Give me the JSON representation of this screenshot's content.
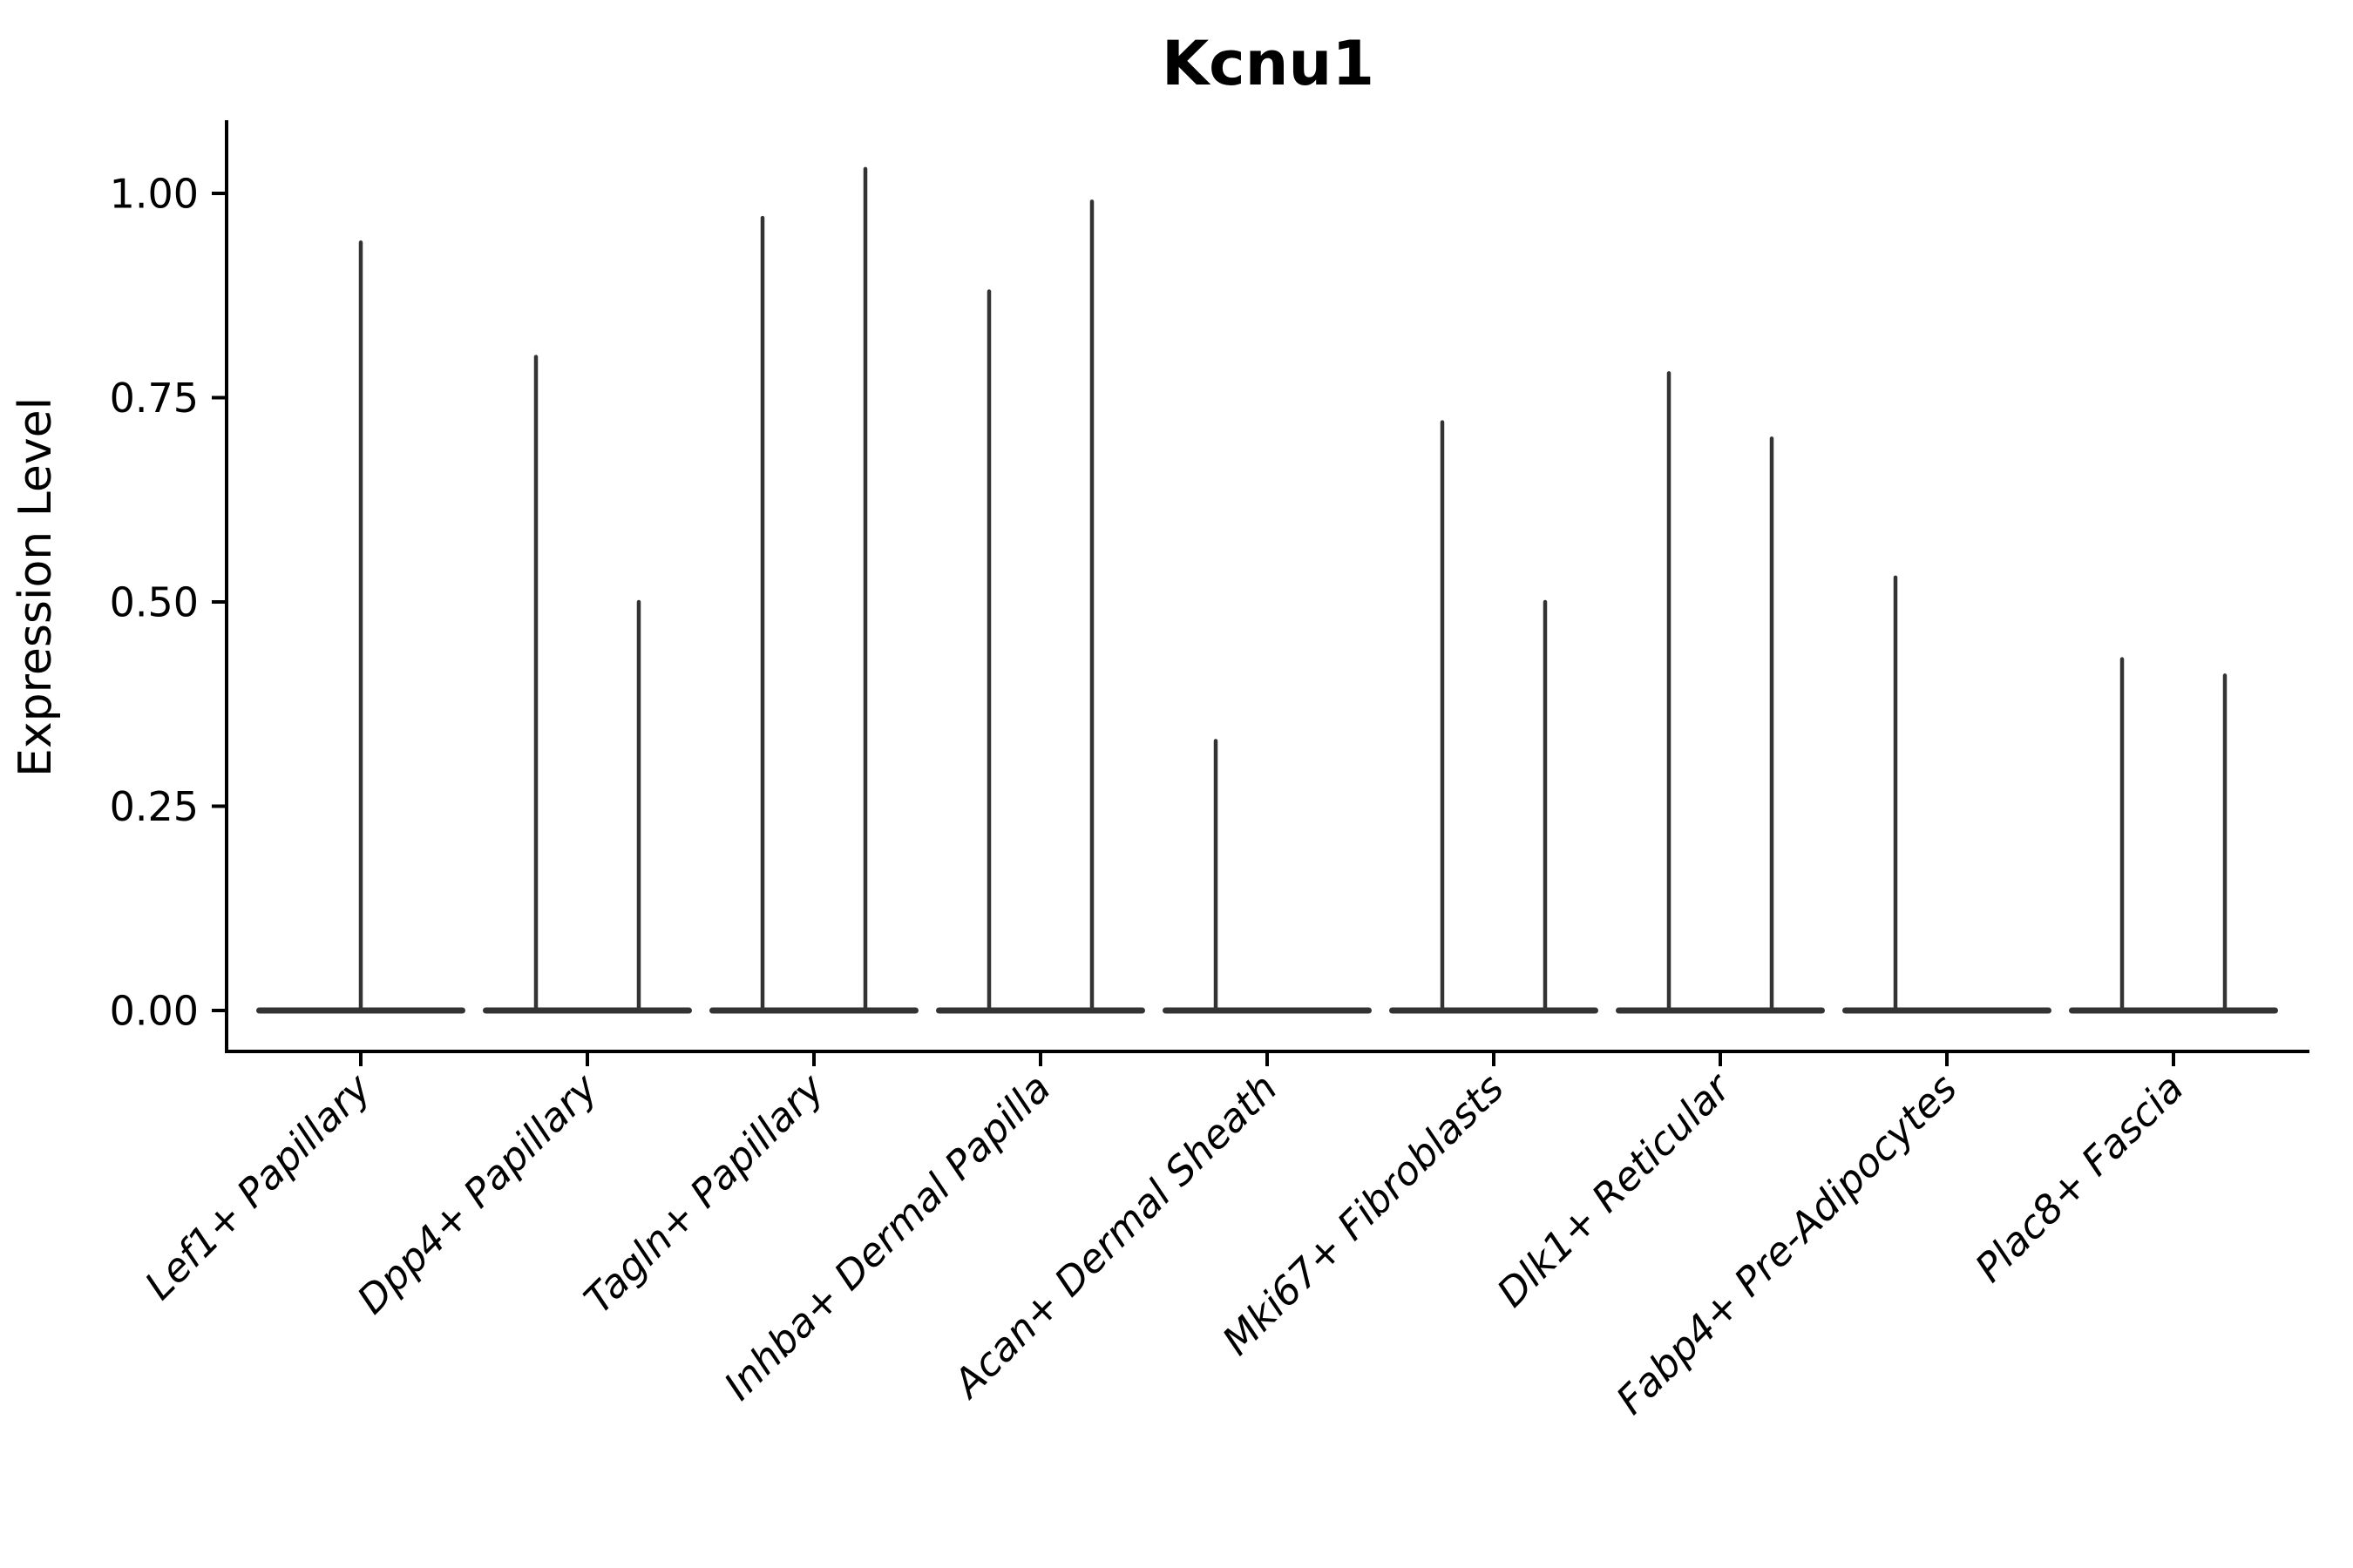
{
  "chart_data": {
    "type": "violin",
    "title": "Kcnu1",
    "xlabel": "",
    "ylabel": "Expression Level",
    "y_tick_labels": [
      "0.00",
      "0.25",
      "0.50",
      "0.75",
      "1.00"
    ],
    "y_tick_values": [
      0.0,
      0.25,
      0.5,
      0.75,
      1.0
    ],
    "ylim": [
      -0.05,
      1.09
    ],
    "grid": false,
    "legend": "none",
    "categories": [
      "Lef1+ Papillary",
      "Dpp4+ Papillary",
      "Tagln+ Papillary",
      "Inhba+ Dermal Papilla",
      "Acan+ Dermal Sheath",
      "Mki67+ Fibroblasts",
      "Dlk1+ Reticular",
      "Fabp4+ Pre-Adipocytes",
      "Plac8+ Fascia"
    ],
    "violins": [
      {
        "category": "Lef1+ Papillary",
        "baseline": 0,
        "spikes": [
          {
            "position": "center",
            "max": 0.94
          }
        ]
      },
      {
        "category": "Dpp4+ Papillary",
        "baseline": 0,
        "spikes": [
          {
            "position": "left",
            "max": 0.8
          },
          {
            "position": "right",
            "max": 0.5
          }
        ]
      },
      {
        "category": "Tagln+ Papillary",
        "baseline": 0,
        "spikes": [
          {
            "position": "left",
            "max": 0.97
          },
          {
            "position": "right",
            "max": 1.03
          }
        ]
      },
      {
        "category": "Inhba+ Dermal Papilla",
        "baseline": 0,
        "spikes": [
          {
            "position": "left",
            "max": 0.88
          },
          {
            "position": "right",
            "max": 0.99
          }
        ]
      },
      {
        "category": "Acan+ Dermal Sheath",
        "baseline": 0,
        "spikes": [
          {
            "position": "left",
            "max": 0.33
          }
        ]
      },
      {
        "category": "Mki67+ Fibroblasts",
        "baseline": 0,
        "spikes": [
          {
            "position": "left",
            "max": 0.72
          },
          {
            "position": "right",
            "max": 0.5
          }
        ]
      },
      {
        "category": "Dlk1+ Reticular",
        "baseline": 0,
        "spikes": [
          {
            "position": "left",
            "max": 0.78
          },
          {
            "position": "right",
            "max": 0.7
          }
        ]
      },
      {
        "category": "Fabp4+ Pre-Adipocytes",
        "baseline": 0,
        "spikes": [
          {
            "position": "left",
            "max": 0.53
          }
        ]
      },
      {
        "category": "Plac8+ Fascia",
        "baseline": 0,
        "spikes": [
          {
            "position": "left",
            "max": 0.43
          },
          {
            "position": "right",
            "max": 0.41
          }
        ]
      }
    ],
    "colors": {
      "violin": "#333333",
      "axis": "#000000",
      "text": "#000000",
      "background": "#ffffff"
    }
  }
}
